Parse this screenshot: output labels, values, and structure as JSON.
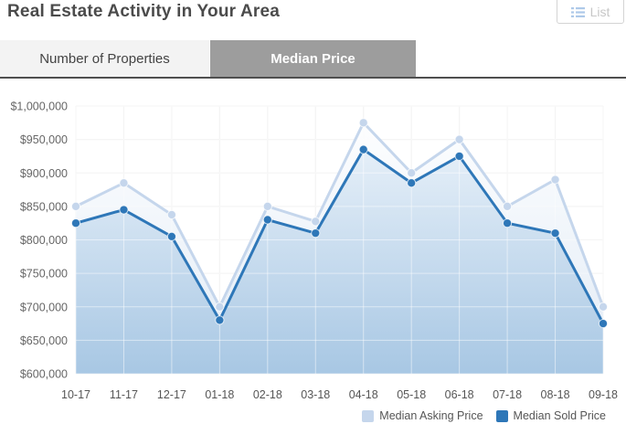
{
  "header": {
    "title": "Real Estate Activity in Your Area",
    "list_button": {
      "label": "List",
      "icon": "list-icon"
    }
  },
  "tabs": [
    {
      "label": "Number of Properties",
      "active": false
    },
    {
      "label": "Median Price",
      "active": true
    }
  ],
  "colors": {
    "active_tab_bg": "#9d9d9d",
    "inactive_tab_bg": "#f3f3f3",
    "tab_rule": "#4f4f4f",
    "axis_label": "#666666",
    "list_icon_blue": "#aec9e9"
  },
  "chart_data": {
    "type": "area",
    "title": "",
    "xlabel": "",
    "ylabel": "",
    "categories": [
      "10-17",
      "11-17",
      "12-17",
      "01-18",
      "02-18",
      "03-18",
      "04-18",
      "05-18",
      "06-18",
      "07-18",
      "08-18",
      "09-18"
    ],
    "series": [
      {
        "name": "Median Asking Price",
        "color": "#c5d6ec",
        "fill_top": "#ffffff",
        "fill_bottom": "#dbe7f4",
        "values": [
          850000,
          885000,
          837500,
          700000,
          850000,
          827500,
          975000,
          900000,
          950000,
          850000,
          890000,
          700000
        ]
      },
      {
        "name": "Median Sold Price",
        "color": "#2e77b8",
        "fill_top": "#f0f6fc",
        "fill_bottom": "#a6c6e3",
        "values": [
          825000,
          845000,
          805000,
          680000,
          830000,
          810000,
          935000,
          885000,
          925000,
          825000,
          810000,
          675000
        ]
      }
    ],
    "ylim": [
      600000,
      1000000
    ],
    "ytick_step": 50000,
    "yticks": [
      {
        "value": 600000,
        "label": "$600,000"
      },
      {
        "value": 650000,
        "label": "$650,000"
      },
      {
        "value": 700000,
        "label": "$700,000"
      },
      {
        "value": 750000,
        "label": "$750,000"
      },
      {
        "value": 800000,
        "label": "$800,000"
      },
      {
        "value": 850000,
        "label": "$850,000"
      },
      {
        "value": 900000,
        "label": "$900,000"
      },
      {
        "value": 950000,
        "label": "$950,000"
      },
      {
        "value": 1000000,
        "label": "$1,000,000"
      }
    ],
    "grid": true,
    "legend_position": "bottom-right"
  }
}
